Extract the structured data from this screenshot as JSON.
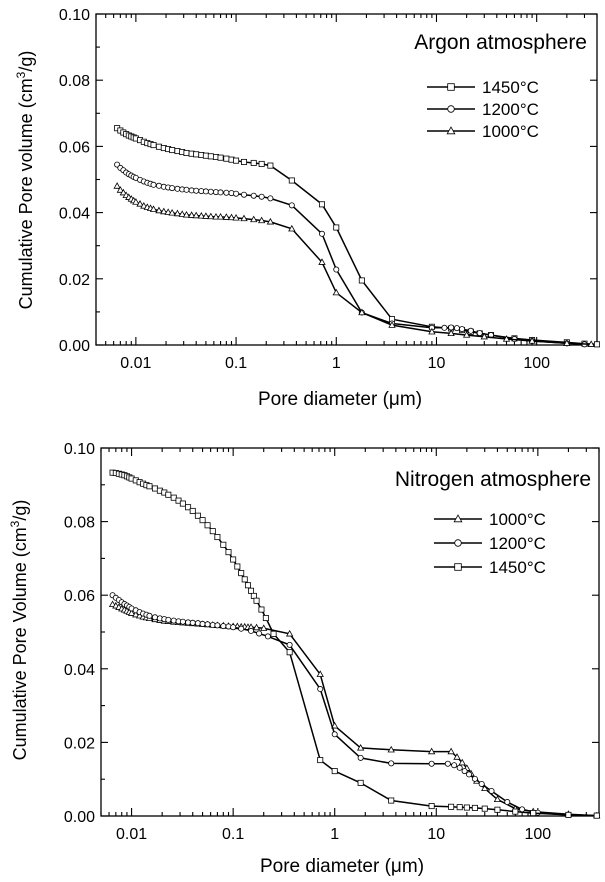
{
  "chart_data": [
    {
      "type": "line",
      "title": "",
      "annotation": "Argon atmosphere",
      "xlabel_pre": "Pore diameter (",
      "xlabel_mu": "μ",
      "xlabel_post": "m)",
      "ylabel_pre": "Cumulative Pore volume (cm",
      "ylabel_sup": "3",
      "ylabel_post": "/g)",
      "x_scale": "log",
      "xlim": [
        0.004,
        400
      ],
      "ylim": [
        0,
        0.1
      ],
      "x_ticks": [
        0.01,
        0.1,
        1,
        10,
        100
      ],
      "x_tick_labels": [
        "0.01",
        "0.1",
        "1",
        "10",
        "100"
      ],
      "y_ticks": [
        0,
        0.02,
        0.04,
        0.06,
        0.08,
        0.1
      ],
      "y_tick_labels": [
        "0.00",
        "0.02",
        "0.04",
        "0.06",
        "0.08",
        "0.10"
      ],
      "legend_position": "top-right",
      "series": [
        {
          "name": "1450°C",
          "marker": "square",
          "x": [
            0.0065,
            0.007,
            0.0075,
            0.008,
            0.0085,
            0.009,
            0.0095,
            0.01,
            0.011,
            0.012,
            0.013,
            0.014,
            0.015,
            0.017,
            0.019,
            0.021,
            0.023,
            0.026,
            0.029,
            0.032,
            0.036,
            0.04,
            0.045,
            0.05,
            0.056,
            0.063,
            0.07,
            0.08,
            0.09,
            0.1,
            0.12,
            0.15,
            0.18,
            0.22,
            0.36,
            0.72,
            1.0,
            1.8,
            3.6,
            9.0,
            14,
            18,
            22,
            27,
            35,
            60,
            90,
            200,
            300,
            400
          ],
          "y": [
            0.0655,
            0.0648,
            0.0642,
            0.0637,
            0.0633,
            0.063,
            0.0627,
            0.0624,
            0.0619,
            0.0614,
            0.061,
            0.0607,
            0.0604,
            0.0599,
            0.0595,
            0.0592,
            0.0589,
            0.0586,
            0.0583,
            0.058,
            0.0578,
            0.0576,
            0.0574,
            0.0572,
            0.057,
            0.0568,
            0.0566,
            0.0563,
            0.056,
            0.0557,
            0.0553,
            0.055,
            0.0547,
            0.0542,
            0.0497,
            0.0425,
            0.0355,
            0.0195,
            0.0078,
            0.0055,
            0.005,
            0.0045,
            0.004,
            0.0035,
            0.003,
            0.002,
            0.0015,
            0.0008,
            0.0004,
            0.0002
          ]
        },
        {
          "name": "1200°C",
          "marker": "circle",
          "x": [
            0.0065,
            0.007,
            0.0075,
            0.008,
            0.0085,
            0.009,
            0.0095,
            0.01,
            0.011,
            0.012,
            0.013,
            0.014,
            0.015,
            0.017,
            0.019,
            0.021,
            0.023,
            0.026,
            0.029,
            0.032,
            0.036,
            0.04,
            0.045,
            0.05,
            0.056,
            0.063,
            0.07,
            0.08,
            0.09,
            0.1,
            0.12,
            0.15,
            0.18,
            0.22,
            0.36,
            0.72,
            1.0,
            1.8,
            3.6,
            9.0,
            12,
            14,
            16,
            18,
            22,
            27,
            35,
            60,
            90,
            200,
            300
          ],
          "y": [
            0.0545,
            0.0535,
            0.0528,
            0.0521,
            0.0516,
            0.0512,
            0.0508,
            0.0505,
            0.0499,
            0.0494,
            0.049,
            0.0487,
            0.0484,
            0.0481,
            0.0478,
            0.0476,
            0.0474,
            0.0472,
            0.047,
            0.0469,
            0.0467,
            0.0466,
            0.0465,
            0.0464,
            0.0463,
            0.0462,
            0.0461,
            0.046,
            0.0459,
            0.0457,
            0.0454,
            0.0451,
            0.0448,
            0.0443,
            0.0422,
            0.0336,
            0.0228,
            0.0098,
            0.0065,
            0.0052,
            0.0052,
            0.0053,
            0.0051,
            0.0048,
            0.0043,
            0.0036,
            0.003,
            0.0018,
            0.0012,
            0.0005,
            0.0002
          ]
        },
        {
          "name": "1000°C",
          "marker": "triangle",
          "x": [
            0.0065,
            0.007,
            0.0075,
            0.008,
            0.0085,
            0.009,
            0.0095,
            0.01,
            0.011,
            0.012,
            0.013,
            0.014,
            0.015,
            0.017,
            0.019,
            0.021,
            0.023,
            0.026,
            0.029,
            0.032,
            0.036,
            0.04,
            0.045,
            0.05,
            0.056,
            0.063,
            0.07,
            0.08,
            0.09,
            0.1,
            0.12,
            0.15,
            0.18,
            0.22,
            0.36,
            0.72,
            1.0,
            1.8,
            3.6,
            9.0,
            14,
            20,
            30,
            50,
            90,
            200,
            350
          ],
          "y": [
            0.048,
            0.0468,
            0.046,
            0.0452,
            0.0446,
            0.0441,
            0.0436,
            0.0432,
            0.0426,
            0.042,
            0.0416,
            0.0413,
            0.041,
            0.0406,
            0.0403,
            0.0401,
            0.0399,
            0.0397,
            0.0395,
            0.0393,
            0.0392,
            0.0391,
            0.039,
            0.0389,
            0.0388,
            0.0387,
            0.0387,
            0.0386,
            0.0385,
            0.0384,
            0.0382,
            0.0379,
            0.0376,
            0.0372,
            0.0351,
            0.025,
            0.0158,
            0.0098,
            0.006,
            0.004,
            0.0035,
            0.003,
            0.0025,
            0.0018,
            0.0012,
            0.0005,
            0.0002
          ]
        }
      ]
    },
    {
      "type": "line",
      "title": "",
      "annotation": "Nitrogen atmosphere",
      "xlabel_pre": "Pore diameter (",
      "xlabel_mu": "μ",
      "xlabel_post": "m)",
      "ylabel_pre": "Cumulative Pore Volume (cm",
      "ylabel_sup": "3",
      "ylabel_post": "/g)",
      "x_scale": "log",
      "xlim": [
        0.005,
        400
      ],
      "ylim": [
        0,
        0.1
      ],
      "x_ticks": [
        0.01,
        0.1,
        1,
        10,
        100
      ],
      "x_tick_labels": [
        "0.01",
        "0.1",
        "1",
        "10",
        "100"
      ],
      "y_ticks": [
        0,
        0.02,
        0.04,
        0.06,
        0.08,
        0.1
      ],
      "y_tick_labels": [
        "0.00",
        "0.02",
        "0.04",
        "0.06",
        "0.08",
        "0.10"
      ],
      "legend_position": "top-right",
      "series": [
        {
          "name": "1000°C",
          "marker": "triangle",
          "x": [
            0.0065,
            0.007,
            0.0075,
            0.008,
            0.0085,
            0.009,
            0.0095,
            0.01,
            0.011,
            0.012,
            0.013,
            0.014,
            0.015,
            0.017,
            0.019,
            0.021,
            0.023,
            0.026,
            0.029,
            0.032,
            0.036,
            0.04,
            0.045,
            0.05,
            0.056,
            0.063,
            0.07,
            0.08,
            0.09,
            0.1,
            0.11,
            0.12,
            0.13,
            0.14,
            0.15,
            0.17,
            0.2,
            0.36,
            0.72,
            1.0,
            1.8,
            3.6,
            9.0,
            14,
            16,
            18,
            20,
            22,
            25,
            30,
            40,
            60,
            90,
            200,
            380
          ],
          "y": [
            0.0575,
            0.0571,
            0.0567,
            0.0563,
            0.056,
            0.0557,
            0.0554,
            0.0551,
            0.0547,
            0.0544,
            0.0541,
            0.0539,
            0.0537,
            0.0534,
            0.0532,
            0.053,
            0.0529,
            0.0527,
            0.0526,
            0.0525,
            0.0524,
            0.0523,
            0.0522,
            0.0521,
            0.052,
            0.0519,
            0.0518,
            0.0517,
            0.0516,
            0.0515,
            0.0515,
            0.0514,
            0.0514,
            0.0513,
            0.0513,
            0.0512,
            0.051,
            0.0495,
            0.0385,
            0.0245,
            0.0185,
            0.018,
            0.0175,
            0.0175,
            0.016,
            0.0145,
            0.013,
            0.0115,
            0.0095,
            0.0075,
            0.0045,
            0.002,
            0.0012,
            0.0005,
            0.0001
          ]
        },
        {
          "name": "1200°C",
          "marker": "circle",
          "x": [
            0.0065,
            0.007,
            0.0075,
            0.008,
            0.0085,
            0.009,
            0.0095,
            0.01,
            0.011,
            0.012,
            0.013,
            0.014,
            0.015,
            0.017,
            0.019,
            0.021,
            0.023,
            0.026,
            0.029,
            0.032,
            0.036,
            0.04,
            0.045,
            0.05,
            0.056,
            0.063,
            0.07,
            0.08,
            0.09,
            0.1,
            0.12,
            0.15,
            0.18,
            0.22,
            0.36,
            0.72,
            1.0,
            1.8,
            3.6,
            9.0,
            13,
            15,
            17,
            19,
            21,
            24,
            28,
            35,
            50,
            70,
            100,
            200,
            380
          ],
          "y": [
            0.06,
            0.0593,
            0.0587,
            0.0581,
            0.0576,
            0.0572,
            0.0568,
            0.0564,
            0.0559,
            0.0554,
            0.055,
            0.0547,
            0.0544,
            0.054,
            0.0537,
            0.0535,
            0.0533,
            0.0531,
            0.0529,
            0.0528,
            0.0526,
            0.0525,
            0.0524,
            0.0522,
            0.0521,
            0.0519,
            0.0518,
            0.0516,
            0.0515,
            0.0513,
            0.0509,
            0.0503,
            0.0496,
            0.0488,
            0.0465,
            0.0345,
            0.0222,
            0.0158,
            0.0143,
            0.0142,
            0.0142,
            0.0138,
            0.0131,
            0.0122,
            0.0113,
            0.0101,
            0.0087,
            0.0068,
            0.0038,
            0.0018,
            0.0009,
            0.0003,
            0.0001
          ]
        },
        {
          "name": "1450°C",
          "marker": "square",
          "x": [
            0.0065,
            0.007,
            0.0075,
            0.008,
            0.0085,
            0.009,
            0.0095,
            0.01,
            0.011,
            0.012,
            0.013,
            0.014,
            0.015,
            0.017,
            0.019,
            0.021,
            0.023,
            0.026,
            0.029,
            0.032,
            0.036,
            0.04,
            0.045,
            0.05,
            0.056,
            0.063,
            0.07,
            0.08,
            0.09,
            0.1,
            0.11,
            0.12,
            0.13,
            0.14,
            0.15,
            0.16,
            0.17,
            0.19,
            0.21,
            0.25,
            0.36,
            0.72,
            1.0,
            1.8,
            3.6,
            9.0,
            14,
            17,
            20,
            24,
            30,
            40,
            60,
            90,
            200,
            380
          ],
          "y": [
            0.0933,
            0.0932,
            0.093,
            0.0928,
            0.0926,
            0.0923,
            0.092,
            0.0917,
            0.0912,
            0.0907,
            0.0903,
            0.0899,
            0.0896,
            0.089,
            0.0884,
            0.0879,
            0.0873,
            0.0865,
            0.0857,
            0.0849,
            0.0839,
            0.0829,
            0.0816,
            0.0804,
            0.079,
            0.0774,
            0.0758,
            0.0737,
            0.0717,
            0.0697,
            0.0678,
            0.066,
            0.0643,
            0.0627,
            0.0612,
            0.0598,
            0.0585,
            0.0561,
            0.0538,
            0.0495,
            0.0445,
            0.0152,
            0.0122,
            0.009,
            0.0042,
            0.0027,
            0.0025,
            0.0024,
            0.0023,
            0.0022,
            0.002,
            0.0017,
            0.0012,
            0.0008,
            0.0003,
            0.0001
          ]
        }
      ]
    }
  ]
}
